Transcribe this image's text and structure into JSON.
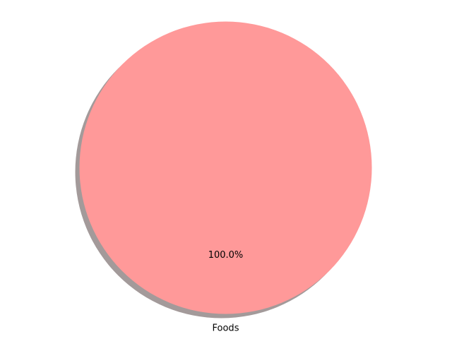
{
  "chart_data": {
    "type": "pie",
    "title": "",
    "slices": [
      {
        "label": "Foods",
        "value": 100,
        "percent_label": "100.0%",
        "color": "#ff9999"
      }
    ],
    "shadow": true,
    "shadow_color": "#a39a9a",
    "legend": "none"
  }
}
